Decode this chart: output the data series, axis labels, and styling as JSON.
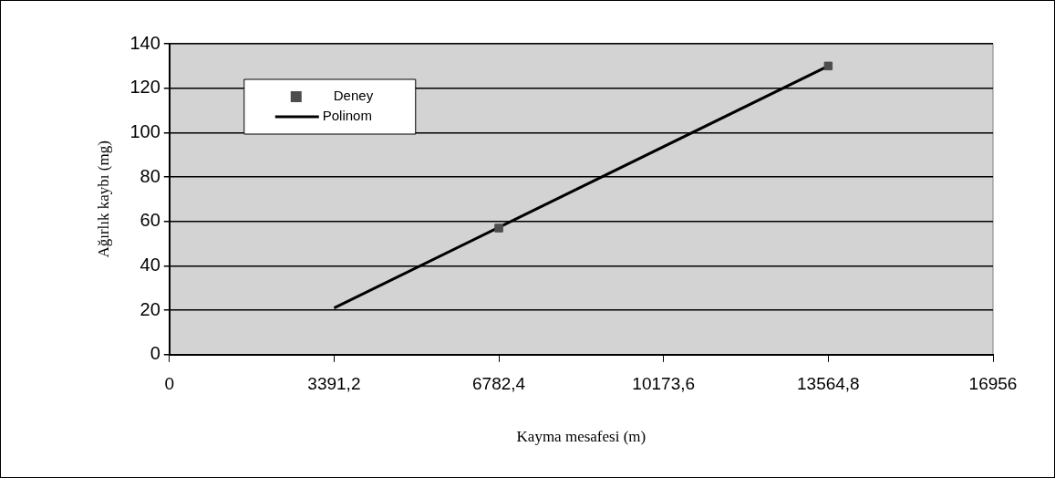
{
  "chart_data": {
    "type": "scatter",
    "xlabel": "Kayma mesafesi (m)",
    "ylabel": "Ağırlık kaybı (mg)",
    "xlim": [
      0,
      16956
    ],
    "xticks": [
      {
        "value": 0,
        "label": "0"
      },
      {
        "value": 3391.2,
        "label": "3391,2"
      },
      {
        "value": 6782.4,
        "label": "6782,4"
      },
      {
        "value": 10173.6,
        "label": "10173,6"
      },
      {
        "value": 13564.8,
        "label": "13564,8"
      },
      {
        "value": 16956,
        "label": "16956"
      }
    ],
    "ylim": [
      0,
      140
    ],
    "yticks": [
      0,
      20,
      40,
      60,
      80,
      100,
      120,
      140
    ],
    "grid": "y",
    "legend": "top left",
    "series": [
      {
        "name": "Deney",
        "type": "scatter",
        "marker": "square",
        "color": "#4d4d4d",
        "x": [
          6782.4,
          13564.8
        ],
        "values": [
          57,
          130
        ]
      },
      {
        "name": "Polinom",
        "type": "line",
        "color": "#000000",
        "x": [
          3391.2,
          13564.8
        ],
        "values": [
          21,
          130
        ]
      }
    ]
  }
}
